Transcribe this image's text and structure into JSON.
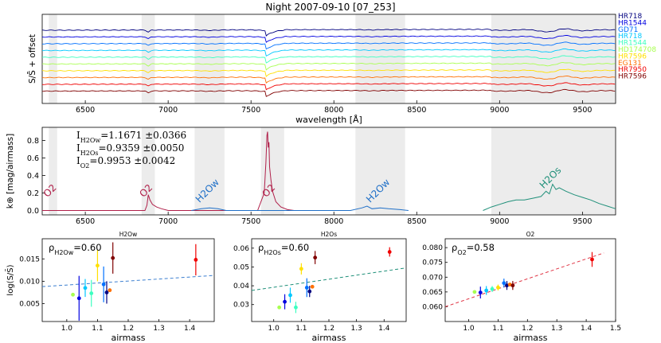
{
  "figure": {
    "title": "Night 2007-09-10 [07_253]"
  },
  "chart_data": [
    {
      "type": "line",
      "panel": "spectra",
      "xlabel": "wavelength [Å]",
      "ylabel": "S/S̄ + offset",
      "xlim": [
        6240,
        9700
      ],
      "xticks": [
        6500,
        7000,
        7500,
        8000,
        8500,
        9000,
        9500
      ],
      "shaded_bands": [
        [
          6280,
          6330
        ],
        [
          6840,
          6920
        ],
        [
          7160,
          7340
        ],
        [
          8130,
          8430
        ],
        [
          8950,
          9700
        ]
      ],
      "grid": false,
      "legend_position": "right",
      "series": [
        {
          "name": "HR718",
          "color": "#000080"
        },
        {
          "name": "HR1544",
          "color": "#0000e0"
        },
        {
          "name": "GD71",
          "color": "#0070ff"
        },
        {
          "name": "HR718",
          "color": "#00c8ff"
        },
        {
          "name": "HR1544",
          "color": "#3cffc0"
        },
        {
          "name": "HD174708",
          "color": "#a8ff50"
        },
        {
          "name": "HR7596",
          "color": "#ffe000"
        },
        {
          "name": "EG131",
          "color": "#ff7000"
        },
        {
          "name": "HR7950",
          "color": "#f00000"
        },
        {
          "name": "HR7596",
          "color": "#800000"
        }
      ]
    },
    {
      "type": "line",
      "panel": "extinction",
      "ylabel": "k⊕ [mag/airmass]",
      "xlim": [
        6240,
        9700
      ],
      "ylim": [
        -0.05,
        0.95
      ],
      "yticks": [
        0.0,
        0.2,
        0.4,
        0.6,
        0.8
      ],
      "xticks": [
        6500,
        7000,
        7500,
        8000,
        8500,
        9000,
        9500
      ],
      "shaded_bands": [
        [
          6280,
          6330
        ],
        [
          6840,
          6920
        ],
        [
          7160,
          7340
        ],
        [
          7560,
          7700
        ],
        [
          8130,
          8430
        ],
        [
          8950,
          9700
        ]
      ],
      "annotations": [
        {
          "text": "O2",
          "x": 6300,
          "y": 0.2,
          "color": "#b0204a"
        },
        {
          "text": "O2",
          "x": 6880,
          "y": 0.2,
          "color": "#b0204a"
        },
        {
          "text": "H2Ow",
          "x": 7250,
          "y": 0.2,
          "color": "#2070c8"
        },
        {
          "text": "O2",
          "x": 7620,
          "y": 0.2,
          "color": "#b0204a"
        },
        {
          "text": "H2Ow",
          "x": 8280,
          "y": 0.2,
          "color": "#2070c8"
        },
        {
          "text": "H2Os",
          "x": 9320,
          "y": 0.35,
          "color": "#20907a"
        }
      ],
      "integrals": [
        {
          "sub": "H2Ow",
          "value": "=1.1671 ±0.0366"
        },
        {
          "sub": "H2Os",
          "value": "=0.9359 ±0.0050"
        },
        {
          "sub": "O2",
          "value": "=0.9953 ±0.0042"
        }
      ],
      "series": [
        {
          "name": "O2",
          "color": "#b0204a",
          "x": [
            6240,
            6860,
            6872,
            6880,
            6890,
            6905,
            6930,
            6960,
            7000,
            7540,
            7580,
            7590,
            7596,
            7600,
            7604,
            7608,
            7612,
            7620,
            7630,
            7650,
            7680,
            7720,
            7760
          ],
          "y": [
            0.0,
            0.0,
            0.06,
            0.18,
            0.12,
            0.07,
            0.04,
            0.02,
            0.0,
            0.0,
            0.2,
            0.55,
            0.86,
            0.9,
            0.72,
            0.78,
            0.5,
            0.35,
            0.22,
            0.1,
            0.04,
            0.01,
            0.0
          ]
        },
        {
          "name": "H2Ow",
          "color": "#2070c8",
          "x": [
            7140,
            7200,
            7250,
            7300,
            7350,
            8100,
            8170,
            8200,
            8230,
            8280,
            8330,
            8400,
            8450
          ],
          "y": [
            0.0,
            0.02,
            0.03,
            0.02,
            0.0,
            0.0,
            0.03,
            0.05,
            0.02,
            0.03,
            0.02,
            0.01,
            0.0
          ]
        },
        {
          "name": "H2Os",
          "color": "#20907a",
          "x": [
            8900,
            8950,
            9000,
            9050,
            9100,
            9150,
            9200,
            9250,
            9280,
            9300,
            9320,
            9340,
            9360,
            9400,
            9450,
            9500,
            9550,
            9600,
            9650,
            9700
          ],
          "y": [
            0.0,
            0.04,
            0.07,
            0.1,
            0.12,
            0.12,
            0.14,
            0.16,
            0.22,
            0.19,
            0.3,
            0.24,
            0.26,
            0.22,
            0.18,
            0.15,
            0.12,
            0.08,
            0.05,
            0.02
          ]
        }
      ]
    },
    {
      "type": "scatter",
      "panel": "correlation",
      "title": "H2Ow",
      "xlabel": "airmass",
      "ylabel": "log(S/S̄)",
      "rho_label": "=0.60",
      "rho_sub": "H2Ow",
      "xlim": [
        0.92,
        1.48
      ],
      "ylim": [
        0.001,
        0.0195
      ],
      "xticks": [
        1.0,
        1.1,
        1.2,
        1.3,
        1.4
      ],
      "yticks": [
        0.005,
        0.01,
        0.015
      ],
      "ytick_labels": [
        "0.005",
        "0.010",
        "0.015"
      ],
      "trend": {
        "x": [
          0.92,
          1.48
        ],
        "y": [
          0.0088,
          0.0113
        ],
        "color": "#3a7ed0"
      },
      "points": [
        {
          "x": 1.02,
          "y": 0.007,
          "err": 0.0003,
          "color": "#a8ff50"
        },
        {
          "x": 1.04,
          "y": 0.0062,
          "err": 0.005,
          "color": "#0000e0"
        },
        {
          "x": 1.06,
          "y": 0.0085,
          "err": 0.002,
          "color": "#00c8ff"
        },
        {
          "x": 1.08,
          "y": 0.0073,
          "err": 0.003,
          "color": "#3cffc0"
        },
        {
          "x": 1.1,
          "y": 0.0135,
          "err": 0.0035,
          "color": "#ffe000"
        },
        {
          "x": 1.12,
          "y": 0.0093,
          "err": 0.004,
          "color": "#0070ff"
        },
        {
          "x": 1.13,
          "y": 0.0075,
          "err": 0.0025,
          "color": "#000080"
        },
        {
          "x": 1.14,
          "y": 0.008,
          "err": 0.0004,
          "color": "#ff7000"
        },
        {
          "x": 1.15,
          "y": 0.0152,
          "err": 0.0035,
          "color": "#800000"
        },
        {
          "x": 1.42,
          "y": 0.0148,
          "err": 0.0035,
          "color": "#f00000"
        }
      ]
    },
    {
      "type": "scatter",
      "panel": "correlation",
      "title": "H2Os",
      "xlabel": "airmass",
      "rho_label": "=0.60",
      "rho_sub": "H2Os",
      "xlim": [
        0.92,
        1.48
      ],
      "ylim": [
        0.021,
        0.065
      ],
      "xticks": [
        1.0,
        1.1,
        1.2,
        1.3,
        1.4
      ],
      "yticks": [
        0.03,
        0.04,
        0.05,
        0.06
      ],
      "ytick_labels": [
        "0.03",
        "0.04",
        "0.05",
        "0.06"
      ],
      "trend": {
        "x": [
          0.92,
          1.48
        ],
        "y": [
          0.0375,
          0.0495
        ],
        "color": "#20907a"
      },
      "points": [
        {
          "x": 1.02,
          "y": 0.0285,
          "err": 0.0003,
          "color": "#a8ff50"
        },
        {
          "x": 1.04,
          "y": 0.0315,
          "err": 0.004,
          "color": "#0000e0"
        },
        {
          "x": 1.06,
          "y": 0.035,
          "err": 0.004,
          "color": "#00c8ff"
        },
        {
          "x": 1.08,
          "y": 0.0285,
          "err": 0.003,
          "color": "#3cffc0"
        },
        {
          "x": 1.1,
          "y": 0.049,
          "err": 0.003,
          "color": "#ffe000"
        },
        {
          "x": 1.12,
          "y": 0.039,
          "err": 0.005,
          "color": "#0070ff"
        },
        {
          "x": 1.13,
          "y": 0.037,
          "err": 0.003,
          "color": "#000080"
        },
        {
          "x": 1.14,
          "y": 0.0395,
          "err": 0.0004,
          "color": "#ff7000"
        },
        {
          "x": 1.15,
          "y": 0.055,
          "err": 0.0035,
          "color": "#800000"
        },
        {
          "x": 1.42,
          "y": 0.058,
          "err": 0.0025,
          "color": "#f00000"
        }
      ]
    },
    {
      "type": "scatter",
      "panel": "correlation",
      "title": "O2",
      "xlabel": "airmass",
      "rho_label": "=0.58",
      "rho_sub": "O2",
      "xlim": [
        0.92,
        1.5
      ],
      "ylim": [
        0.055,
        0.083
      ],
      "xticks": [
        1.0,
        1.1,
        1.2,
        1.3,
        1.4,
        1.5
      ],
      "yticks": [
        0.06,
        0.065,
        0.07,
        0.075,
        0.08
      ],
      "ytick_labels": [
        "0.060",
        "0.065",
        "0.070",
        "0.075",
        "0.080"
      ],
      "trend": {
        "x": [
          0.92,
          1.46
        ],
        "y": [
          0.06,
          0.0782
        ],
        "color": "#e03040"
      },
      "points": [
        {
          "x": 1.02,
          "y": 0.065,
          "err": 0.0003,
          "color": "#a8ff50"
        },
        {
          "x": 1.04,
          "y": 0.0648,
          "err": 0.002,
          "color": "#0000e0"
        },
        {
          "x": 1.06,
          "y": 0.0655,
          "err": 0.0015,
          "color": "#00c8ff"
        },
        {
          "x": 1.08,
          "y": 0.066,
          "err": 0.001,
          "color": "#3cffc0"
        },
        {
          "x": 1.1,
          "y": 0.0665,
          "err": 0.001,
          "color": "#ffe000"
        },
        {
          "x": 1.12,
          "y": 0.068,
          "err": 0.0015,
          "color": "#0070ff"
        },
        {
          "x": 1.13,
          "y": 0.0672,
          "err": 0.0015,
          "color": "#000080"
        },
        {
          "x": 1.14,
          "y": 0.0675,
          "err": 0.0004,
          "color": "#ff7000"
        },
        {
          "x": 1.15,
          "y": 0.0672,
          "err": 0.0015,
          "color": "#800000"
        },
        {
          "x": 1.42,
          "y": 0.076,
          "err": 0.0025,
          "color": "#f00000"
        }
      ]
    }
  ]
}
